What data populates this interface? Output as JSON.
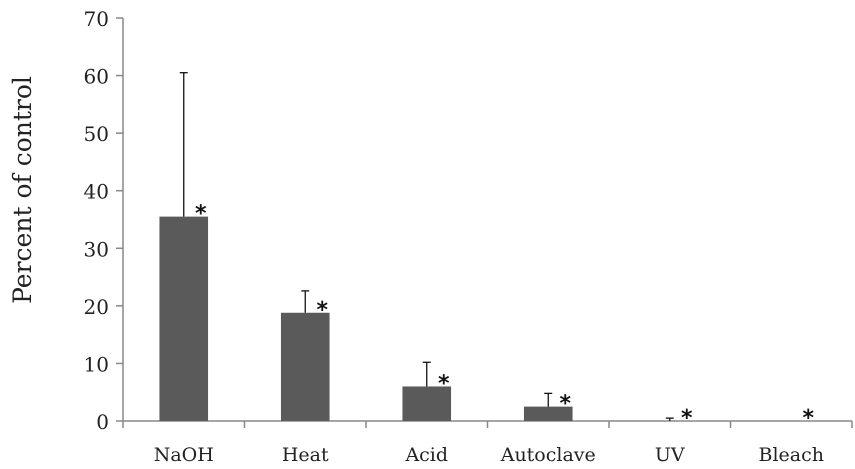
{
  "chart_data": {
    "type": "bar",
    "title": "",
    "xlabel": "",
    "ylabel": "Percent of control",
    "ylim": [
      0,
      70
    ],
    "yticks": [
      0,
      10,
      20,
      30,
      40,
      50,
      60,
      70
    ],
    "grid": false,
    "legend": "none",
    "categories": [
      "NaOH",
      "Heat",
      "Acid",
      "Autoclave",
      "UV",
      "Bleach"
    ],
    "values": [
      35.5,
      18.8,
      6.0,
      2.5,
      0.0,
      0.0
    ],
    "error_plus": [
      25.0,
      3.8,
      4.2,
      2.3,
      0.5,
      0.0
    ],
    "significance": [
      "*",
      "*",
      "*",
      "*",
      "*",
      "*"
    ],
    "bar_color": "#5a5a5a"
  }
}
